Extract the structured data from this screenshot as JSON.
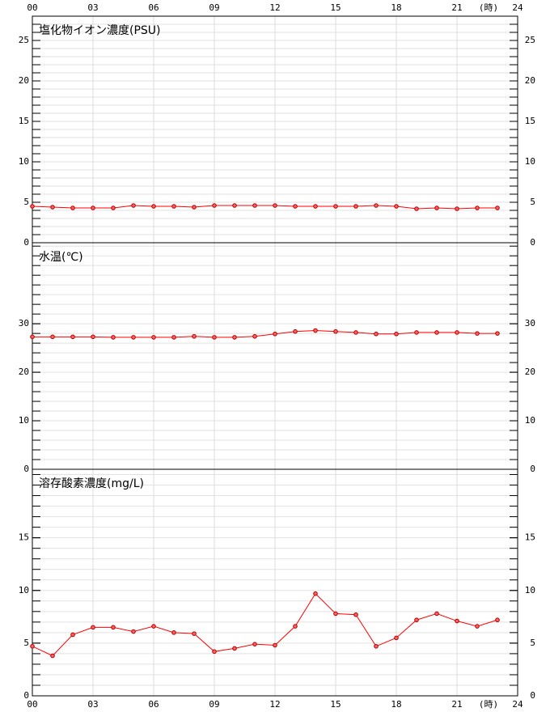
{
  "x_axis": {
    "xlim": [
      0,
      24
    ],
    "xticks": [
      {
        "value": 0,
        "label": "00"
      },
      {
        "value": 3,
        "label": "03"
      },
      {
        "value": 6,
        "label": "06"
      },
      {
        "value": 9,
        "label": "09"
      },
      {
        "value": 12,
        "label": "12"
      },
      {
        "value": 15,
        "label": "15"
      },
      {
        "value": 18,
        "label": "18"
      },
      {
        "value": 21,
        "label": "21"
      },
      {
        "value": 24,
        "label": "24"
      }
    ],
    "unit_label": "(時)"
  },
  "chart_data": [
    {
      "type": "line",
      "title": "塩化物イオン濃度(PSU)",
      "color": "#ff0000",
      "x": [
        0,
        1,
        2,
        3,
        4,
        5,
        6,
        7,
        8,
        9,
        10,
        11,
        12,
        13,
        14,
        15,
        16,
        17,
        18,
        19,
        20,
        21,
        22,
        23
      ],
      "values": [
        4.5,
        4.4,
        4.3,
        4.3,
        4.3,
        4.6,
        4.5,
        4.5,
        4.4,
        4.6,
        4.6,
        4.6,
        4.6,
        4.5,
        4.5,
        4.5,
        4.5,
        4.6,
        4.5,
        4.2,
        4.3,
        4.2,
        4.3,
        4.3
      ],
      "ylim": [
        0,
        28
      ],
      "yticks": [
        0,
        5,
        10,
        15,
        20,
        25
      ],
      "minor_step": 1
    },
    {
      "type": "line",
      "title": "水温(℃)",
      "color": "#ff0000",
      "x": [
        0,
        1,
        2,
        3,
        4,
        5,
        6,
        7,
        8,
        9,
        10,
        11,
        12,
        13,
        14,
        15,
        16,
        17,
        18,
        19,
        20,
        21,
        22,
        23
      ],
      "values": [
        27.3,
        27.3,
        27.3,
        27.3,
        27.2,
        27.2,
        27.2,
        27.2,
        27.4,
        27.2,
        27.2,
        27.4,
        27.9,
        28.4,
        28.6,
        28.4,
        28.2,
        27.9,
        27.9,
        28.2,
        28.2,
        28.2,
        28.0,
        28.0
      ],
      "ylim": [
        0,
        46.7
      ],
      "yticks": [
        0,
        10,
        20,
        30
      ],
      "minor_step": 2
    },
    {
      "type": "line",
      "title": "溶存酸素濃度(mg/L)",
      "color": "#ff0000",
      "x": [
        0,
        1,
        2,
        3,
        4,
        5,
        6,
        7,
        8,
        9,
        10,
        11,
        12,
        13,
        14,
        15,
        16,
        17,
        18,
        19,
        20,
        21,
        22,
        23
      ],
      "values": [
        4.7,
        3.8,
        5.8,
        6.5,
        6.5,
        6.1,
        6.6,
        6.0,
        5.9,
        4.2,
        4.5,
        4.9,
        4.8,
        6.6,
        9.7,
        7.8,
        7.7,
        4.7,
        5.5,
        7.2,
        7.8,
        7.1,
        6.6,
        7.2
      ],
      "ylim": [
        0,
        21.5
      ],
      "yticks": [
        0,
        5,
        10,
        15
      ],
      "minor_step": 1
    }
  ]
}
